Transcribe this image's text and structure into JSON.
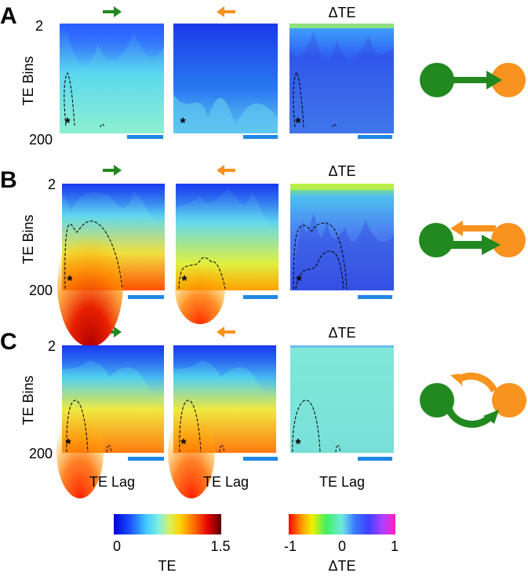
{
  "rows": [
    {
      "letter": "A",
      "panels": [
        {
          "type": "TE",
          "direction": "right"
        },
        {
          "type": "TE",
          "direction": "left"
        },
        {
          "type": "dTE",
          "title": "ΔTE"
        }
      ],
      "diagram": "unidirectional"
    },
    {
      "letter": "B",
      "panels": [
        {
          "type": "TE",
          "direction": "right"
        },
        {
          "type": "TE",
          "direction": "left"
        },
        {
          "type": "dTE",
          "title": "ΔTE"
        }
      ],
      "diagram": "asymmetric-bidirectional"
    },
    {
      "letter": "C",
      "panels": [
        {
          "type": "TE",
          "direction": "right"
        },
        {
          "type": "TE",
          "direction": "left"
        },
        {
          "type": "dTE",
          "title": "ΔTE"
        }
      ],
      "diagram": "symmetric-bidirectional"
    }
  ],
  "axes": {
    "y_label": "TE Bins",
    "y_top": "2",
    "y_bottom": "200",
    "x_label": "TE Lag"
  },
  "marker": "*",
  "colorbars": [
    {
      "name": "TE",
      "label": "TE",
      "ticks": [
        "0",
        "1.5"
      ],
      "range": [
        0,
        1.5
      ]
    },
    {
      "name": "dTE",
      "label": "ΔTE",
      "ticks": [
        "-1",
        "0",
        "1"
      ],
      "range": [
        -1,
        1
      ]
    }
  ],
  "colors": {
    "green": "#21891f",
    "orange": "#f7931e",
    "scale_bar": "#1e88e5"
  }
}
